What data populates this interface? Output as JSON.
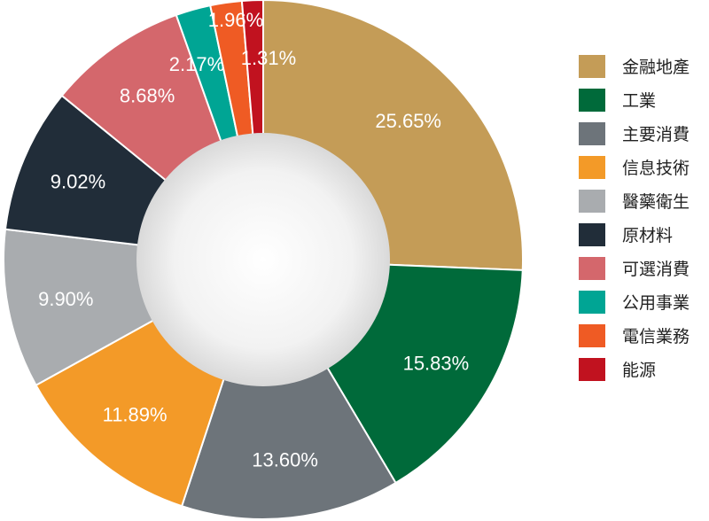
{
  "chart_data": {
    "type": "pie",
    "variant": "donut",
    "title": "",
    "legend_position": "right",
    "start_angle_deg": 0,
    "direction": "clockwise",
    "slices": [
      {
        "label": "金融地產",
        "value": 25.65,
        "display": "25.65%",
        "color": "#c49c57"
      },
      {
        "label": "工業",
        "value": 15.83,
        "display": "15.83%",
        "color": "#006a3a"
      },
      {
        "label": "主要消費",
        "value": 13.6,
        "display": "13.60%",
        "color": "#6d747a"
      },
      {
        "label": "信息技術",
        "value": 11.89,
        "display": "11.89%",
        "color": "#f39a28"
      },
      {
        "label": "醫藥衛生",
        "value": 9.9,
        "display": "9.90%",
        "color": "#a9acaf"
      },
      {
        "label": "原材料",
        "value": 9.02,
        "display": "9.02%",
        "color": "#212d39"
      },
      {
        "label": "可選消費",
        "value": 8.68,
        "display": "8.68%",
        "color": "#d4676c"
      },
      {
        "label": "公用事業",
        "value": 2.17,
        "display": "2.17%",
        "color": "#00a594"
      },
      {
        "label": "電信業務",
        "value": 1.96,
        "display": "1.96%",
        "color": "#ef5b24"
      },
      {
        "label": "能源",
        "value": 1.31,
        "display": "1.31%",
        "color": "#c1121f"
      }
    ]
  }
}
